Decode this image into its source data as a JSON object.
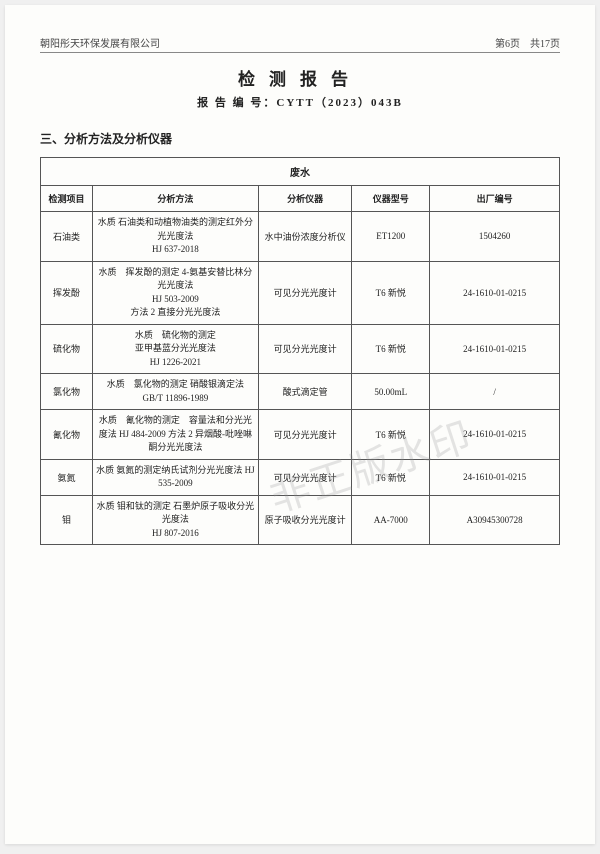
{
  "header": {
    "company": "朝阳彤天环保发展有限公司",
    "page_info": "第6页　共17页"
  },
  "title": "检测报告",
  "report_number_label": "报 告 编 号：",
  "report_number": "CYTT（2023）043B",
  "section_title": "三、分析方法及分析仪器",
  "table_caption": "废水",
  "columns": [
    "检测项目",
    "分析方法",
    "分析仪器",
    "仪器型号",
    "出厂编号"
  ],
  "rows": [
    {
      "item": "石油类",
      "method": "水质 石油类和动植物油类的测定红外分光光度法\nHJ 637-2018",
      "instrument": "水中油份浓度分析仪",
      "model": "ET1200",
      "serial": "1504260"
    },
    {
      "item": "挥发酚",
      "method": "水质　挥发酚的测定 4-氨基安替比林分光光度法\nHJ 503-2009\n方法 2 直接分光光度法",
      "instrument": "可见分光光度计",
      "model": "T6 新悦",
      "serial": "24-1610-01-0215"
    },
    {
      "item": "硫化物",
      "method": "水质　硫化物的测定\n亚甲基蓝分光光度法\nHJ 1226-2021",
      "instrument": "可见分光光度计",
      "model": "T6 新悦",
      "serial": "24-1610-01-0215"
    },
    {
      "item": "氯化物",
      "method": "水质　氯化物的测定 硝酸银滴定法 GB/T 11896-1989",
      "instrument": "酸式滴定管",
      "model": "50.00mL",
      "serial": "/"
    },
    {
      "item": "氰化物",
      "method": "水质　氰化物的测定　容量法和分光光度法 HJ 484-2009 方法 2 异烟酸-吡唑啉酮分光光度法",
      "instrument": "可见分光光度计",
      "model": "T6 新悦",
      "serial": "24-1610-01-0215"
    },
    {
      "item": "氨氮",
      "method": "水质 氨氮的测定纳氏试剂分光光度法 HJ 535-2009",
      "instrument": "可见分光光度计",
      "model": "T6 新悦",
      "serial": "24-1610-01-0215"
    },
    {
      "item": "钼",
      "method": "水质 钼和钛的测定 石墨炉原子吸收分光光度法\nHJ 807-2016",
      "instrument": "原子吸收分光光度计",
      "model": "AA-7000",
      "serial": "A30945300728"
    }
  ],
  "watermark": "非正版水印"
}
